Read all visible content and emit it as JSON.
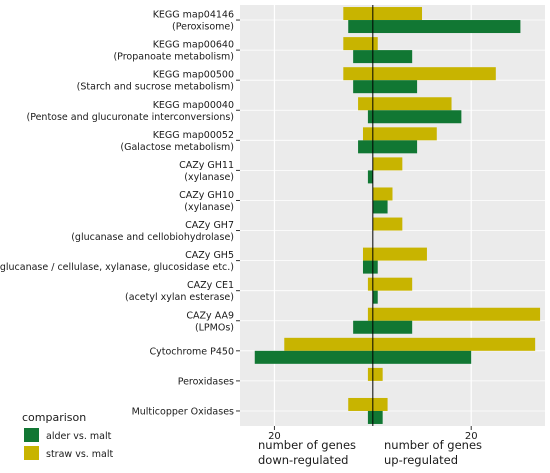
{
  "chart_data": {
    "type": "bar",
    "orientation": "horizontal-diverging",
    "categories": [
      [
        "KEGG map04146",
        "(Peroxisome)"
      ],
      [
        "KEGG map00640",
        "(Propanoate metabolism)"
      ],
      [
        "KEGG map00500",
        "(Starch and sucrose metabolism)"
      ],
      [
        "KEGG map00040",
        "(Pentose and glucuronate interconversions)"
      ],
      [
        "KEGG map00052",
        "(Galactose metabolism)"
      ],
      [
        "CAZy GH11",
        "(xylanase)"
      ],
      [
        "CAZy GH10",
        "(xylanase)"
      ],
      [
        "CAZy GH7",
        "(glucanase and cellobiohydrolase)"
      ],
      [
        "CAZy GH5",
        "(glucanase / cellulase, xylanase, glucosidase etc.)"
      ],
      [
        "CAZy CE1",
        "(acetyl xylan esterase)"
      ],
      [
        "CAZy AA9",
        "(LPMOs)"
      ],
      [
        "Cytochrome P450"
      ],
      [
        "Peroxidases"
      ],
      [
        "Multicopper Oxidases"
      ]
    ],
    "series": [
      {
        "name": "straw vs. malt",
        "color": "#c8b400",
        "down": [
          6,
          6,
          6,
          3,
          2,
          0,
          0,
          0,
          2,
          1,
          1,
          18,
          1,
          5
        ],
        "up": [
          10,
          1,
          25,
          16,
          13,
          6,
          4,
          6,
          11,
          8,
          34,
          33,
          2,
          3
        ]
      },
      {
        "name": "alder vs. malt",
        "color": "#117733",
        "down": [
          5,
          4,
          4,
          1,
          3,
          1,
          0,
          0,
          2,
          0,
          4,
          24,
          0,
          1
        ],
        "up": [
          30,
          8,
          9,
          18,
          9,
          0,
          3,
          0,
          1,
          1,
          8,
          20,
          0,
          2
        ]
      }
    ],
    "xlim": [
      -27,
      35
    ],
    "xticks": [
      {
        "value": -20,
        "label": "20"
      },
      {
        "value": 20,
        "label": "20"
      }
    ],
    "xlabel_left": [
      "number of genes",
      "down-regulated"
    ],
    "xlabel_right": [
      "number of genes",
      "up-regulated"
    ],
    "legend": {
      "title": "comparison",
      "position": "bottom-left",
      "entries": [
        "alder vs. malt",
        "straw vs. malt"
      ]
    },
    "grid": true,
    "panel_background": "#ebebeb",
    "zero_line_color": "#000000"
  }
}
